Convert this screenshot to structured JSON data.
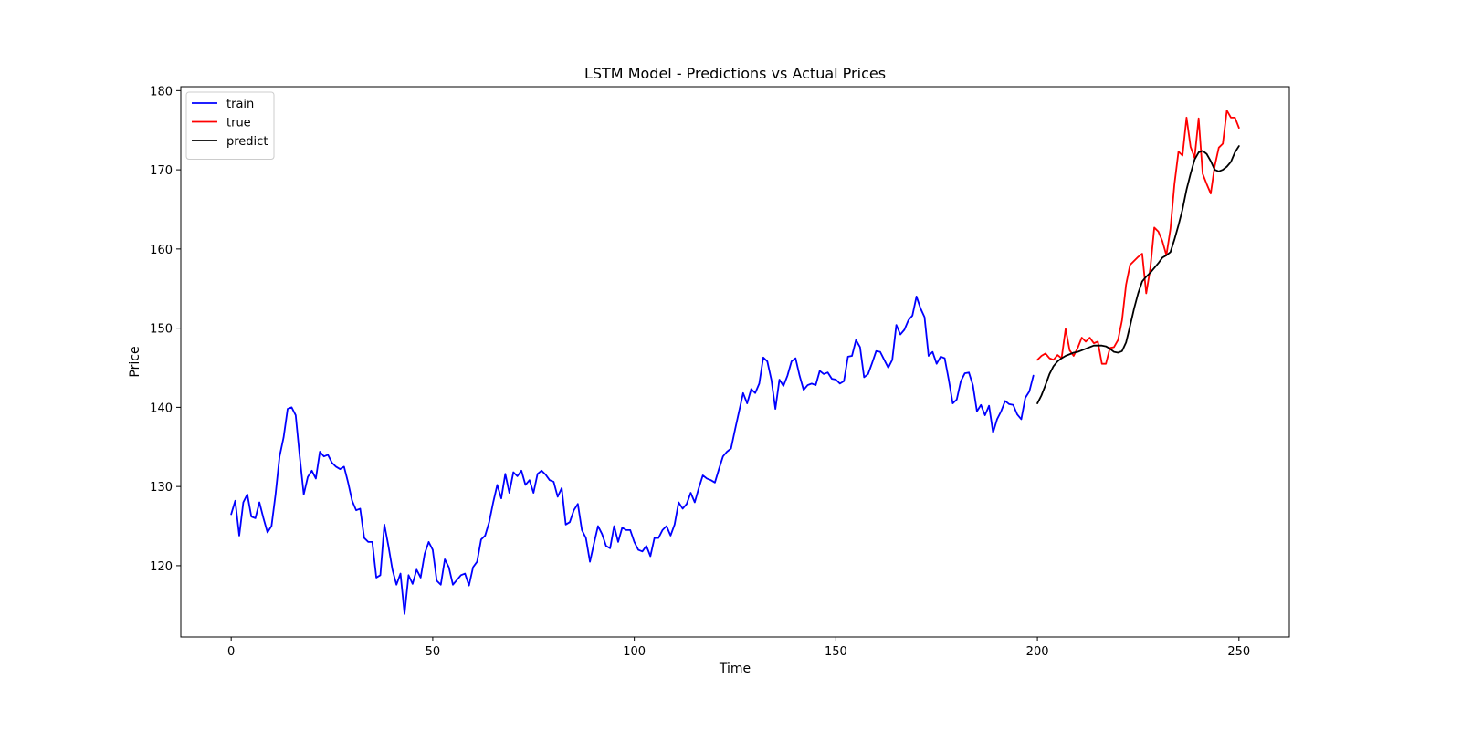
{
  "chart_data": {
    "type": "line",
    "title": "LSTM Model - Predictions vs Actual Prices",
    "xlabel": "Time",
    "ylabel": "Price",
    "xlim": [
      -12.5,
      262.5
    ],
    "ylim": [
      111,
      180.5
    ],
    "x_ticks": [
      0,
      50,
      100,
      150,
      200,
      250
    ],
    "y_ticks": [
      120,
      130,
      140,
      150,
      160,
      170,
      180
    ],
    "grid": false,
    "legend_position": "top-left",
    "series": [
      {
        "name": "train",
        "color": "#0000ff",
        "x_start": 0,
        "values": [
          126.5,
          128.2,
          123.8,
          128.0,
          129.0,
          126.2,
          126.0,
          128.0,
          126.0,
          124.2,
          125.0,
          129.0,
          133.8,
          136.2,
          139.8,
          140.0,
          139.0,
          133.8,
          129.0,
          131.2,
          132.0,
          131.0,
          134.4,
          133.8,
          134.0,
          133.0,
          132.5,
          132.2,
          132.5,
          130.5,
          128.2,
          127.0,
          127.2,
          123.5,
          123.0,
          123.0,
          118.5,
          118.8,
          125.2,
          122.5,
          119.5,
          117.6,
          119.0,
          113.9,
          118.8,
          117.7,
          119.5,
          118.5,
          121.5,
          123.0,
          122.0,
          118.1,
          117.6,
          120.8,
          119.8,
          117.6,
          118.2,
          118.8,
          119.0,
          117.5,
          119.8,
          120.5,
          123.3,
          123.8,
          125.5,
          128.0,
          130.2,
          128.5,
          131.6,
          129.2,
          131.8,
          131.3,
          132.0,
          130.2,
          130.8,
          129.2,
          131.6,
          132.0,
          131.5,
          130.8,
          130.6,
          128.7,
          129.8,
          125.2,
          125.5,
          127.0,
          127.8,
          124.5,
          123.5,
          120.5,
          122.8,
          125.0,
          124.0,
          122.5,
          122.2,
          125.0,
          123.0,
          124.8,
          124.5,
          124.5,
          123.0,
          122.0,
          121.8,
          122.5,
          121.2,
          123.5,
          123.5,
          124.5,
          125.0,
          123.8,
          125.2,
          128.0,
          127.2,
          127.8,
          129.2,
          128.0,
          129.8,
          131.4,
          131.0,
          130.8,
          130.5,
          132.2,
          133.8,
          134.4,
          134.8,
          137.2,
          139.5,
          141.8,
          140.5,
          142.3,
          141.8,
          143.0,
          146.3,
          145.8,
          143.5,
          139.8,
          143.5,
          142.7,
          144.0,
          145.8,
          146.2,
          144.0,
          142.2,
          142.8,
          143.0,
          142.8,
          144.6,
          144.2,
          144.4,
          143.6,
          143.5,
          143.0,
          143.3,
          146.4,
          146.5,
          148.5,
          147.6,
          143.8,
          144.2,
          145.6,
          147.1,
          147.0,
          146.0,
          145.0,
          146.0,
          150.4,
          149.2,
          149.8,
          151.0,
          151.6,
          154.0,
          152.5,
          151.4,
          146.5,
          147.0,
          145.5,
          146.4,
          146.2,
          143.5,
          140.5,
          141.0,
          143.3,
          144.3,
          144.4,
          142.8,
          139.5,
          140.3,
          139.0,
          140.2,
          136.8,
          138.5,
          139.5,
          140.8,
          140.4,
          140.3,
          139.1,
          138.5,
          141.2,
          142.0,
          144.0
        ]
      },
      {
        "name": "true",
        "color": "#ff0000",
        "x_start": 200,
        "values": [
          146.0,
          146.5,
          146.8,
          146.2,
          146.0,
          146.6,
          146.2,
          149.9,
          147.2,
          146.5,
          147.5,
          148.8,
          148.3,
          148.8,
          148.1,
          148.3,
          145.5,
          145.5,
          147.5,
          147.6,
          148.5,
          151.0,
          155.5,
          158.0,
          158.5,
          159.0,
          159.4,
          154.4,
          157.5,
          162.7,
          162.2,
          161.0,
          159.2,
          162.5,
          168.2,
          172.3,
          171.8,
          176.6,
          172.9,
          171.5,
          176.5,
          169.5,
          168.2,
          167.0,
          170.5,
          172.8,
          173.3,
          177.5,
          176.6,
          176.6,
          175.3
        ]
      },
      {
        "name": "predict",
        "color": "#000000",
        "x_start": 200,
        "values": [
          140.5,
          141.5,
          142.8,
          144.2,
          145.2,
          145.8,
          146.2,
          146.5,
          146.7,
          146.9,
          147.0,
          147.2,
          147.4,
          147.6,
          147.8,
          147.8,
          147.8,
          147.7,
          147.4,
          147.0,
          146.9,
          147.1,
          148.2,
          150.3,
          152.5,
          154.4,
          155.9,
          156.5,
          157.0,
          157.6,
          158.2,
          158.9,
          159.2,
          159.6,
          161.2,
          163.0,
          165.0,
          167.5,
          169.5,
          171.3,
          172.2,
          172.4,
          172.0,
          171.1,
          170.0,
          169.8,
          170.0,
          170.4,
          171.0,
          172.2,
          173.0
        ]
      }
    ]
  }
}
